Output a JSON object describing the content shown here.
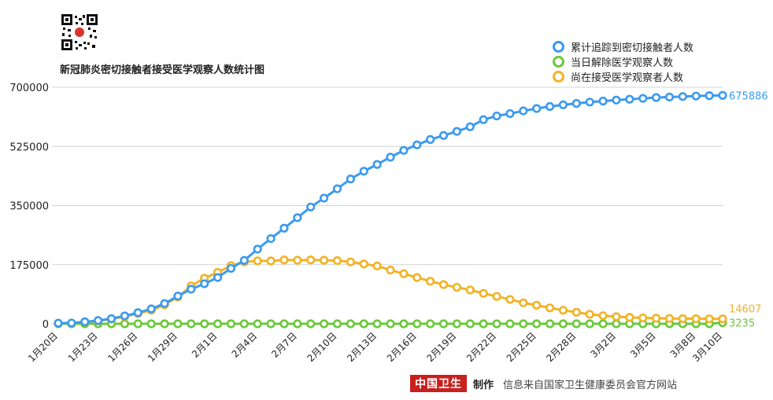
{
  "header": {
    "title": "新冠肺炎密切接触者接受医学观察人数统计图"
  },
  "footer": {
    "logo": "中国卫生",
    "made_by": "制作",
    "source": "信息来自国家卫生健康委员会官方网站"
  },
  "colors": {
    "series1": "#3b9af0",
    "series2": "#6cc83c",
    "series3": "#f2b324",
    "grid": "#d4d4d4",
    "logo_bg": "#c8201d"
  },
  "chart_data": {
    "type": "line",
    "title": "新冠肺炎密切接触者接受医学观察人数统计图",
    "xlabel": "",
    "ylabel": "",
    "ylim": [
      0,
      700000
    ],
    "yticks": [
      0,
      175000,
      350000,
      525000,
      700000
    ],
    "ytick_labels": [
      "0",
      "175000",
      "350000",
      "525000",
      "700000"
    ],
    "grid": true,
    "legend_position": "top-right",
    "categories": [
      "1月20日",
      "1月21日",
      "1月22日",
      "1月23日",
      "1月24日",
      "1月25日",
      "1月26日",
      "1月27日",
      "1月28日",
      "1月29日",
      "1月30日",
      "1月31日",
      "2月1日",
      "2月2日",
      "2月3日",
      "2月4日",
      "2月5日",
      "2月6日",
      "2月7日",
      "2月8日",
      "2月9日",
      "2月10日",
      "2月11日",
      "2月12日",
      "2月13日",
      "2月14日",
      "2月15日",
      "2月16日",
      "2月17日",
      "2月18日",
      "2月19日",
      "2月20日",
      "2月21日",
      "2月22日",
      "2月23日",
      "2月24日",
      "2月25日",
      "2月26日",
      "2月27日",
      "2月28日",
      "2月29日",
      "3月1日",
      "3月2日",
      "3月3日",
      "3月4日",
      "3月5日",
      "3月6日",
      "3月7日",
      "3月8日",
      "3月9日",
      "3月10日"
    ],
    "x_tick_labels": [
      "1月20日",
      "1月23日",
      "1月26日",
      "1月29日",
      "2月1日",
      "2月4日",
      "2月7日",
      "2月10日",
      "2月13日",
      "2月16日",
      "2月19日",
      "2月22日",
      "2月25日",
      "2月28日",
      "3月2日",
      "3月5日",
      "3月8日",
      "3月10日"
    ],
    "series": [
      {
        "name": "累计追踪到密切接触者人数",
        "color": "#3b9af0",
        "end_label": "675886",
        "values": [
          1739,
          2197,
          5897,
          9507,
          15197,
          23431,
          32799,
          44132,
          59990,
          81947,
          102427,
          118478,
          136987,
          163844,
          187518,
          221015,
          252154,
          282813,
          314028,
          345498,
          371905,
          399487,
          428438,
          451462,
          471531,
          493067,
          513183,
          529418,
          545305,
          557199,
          569280,
          583000,
          604000,
          615000,
          622000,
          630000,
          637000,
          643000,
          648000,
          652000,
          656000,
          659000,
          662000,
          664500,
          667000,
          669500,
          671000,
          672500,
          674000,
          675000,
          675886
        ]
      },
      {
        "name": "当日解除医学观察人数",
        "color": "#6cc83c",
        "end_label": "3235",
        "values": [
          0,
          0,
          0,
          0,
          0,
          0,
          0,
          0,
          0,
          0,
          0,
          0,
          0,
          0,
          0,
          0,
          0,
          0,
          0,
          0,
          0,
          0,
          0,
          0,
          0,
          0,
          0,
          0,
          0,
          0,
          0,
          0,
          0,
          0,
          0,
          0,
          0,
          0,
          0,
          0,
          0,
          0,
          0,
          0,
          0,
          0,
          0,
          0,
          0,
          0,
          3235
        ]
      },
      {
        "name": "尚在接受医学观察者人数",
        "color": "#f2b324",
        "end_label": "14607",
        "values": [
          1394,
          1954,
          5897,
          8420,
          13967,
          21556,
          30453,
          40000,
          56000,
          79000,
          112000,
          135000,
          152000,
          172000,
          183000,
          186000,
          186000,
          189000,
          188000,
          189000,
          188000,
          187000,
          183000,
          177000,
          171000,
          159000,
          148000,
          137000,
          126000,
          116000,
          108000,
          100000,
          90000,
          81000,
          72000,
          62000,
          55000,
          47000,
          40000,
          34000,
          28000,
          24000,
          21000,
          19000,
          17500,
          16600,
          15800,
          15300,
          14900,
          14700,
          14607
        ]
      }
    ]
  }
}
